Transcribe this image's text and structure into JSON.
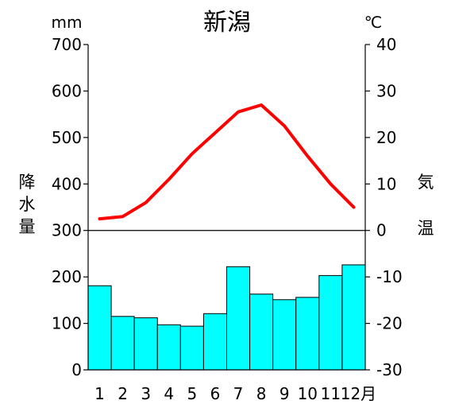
{
  "chart_data": {
    "type": "bar",
    "title": "新潟",
    "left_unit": "mm",
    "right_unit": "℃",
    "left_axis_label": [
      "降",
      "水",
      "量"
    ],
    "right_axis_label": [
      "気",
      "温"
    ],
    "categories": [
      "1",
      "2",
      "3",
      "4",
      "5",
      "6",
      "7",
      "8",
      "9",
      "10",
      "11",
      "12月"
    ],
    "precipitation": {
      "values": [
        181,
        115,
        112,
        97,
        94,
        121,
        222,
        163,
        151,
        156,
        203,
        226
      ],
      "ylim": [
        0,
        300
      ],
      "yticks": [
        0,
        100,
        200
      ]
    },
    "temperature": {
      "values": [
        2.5,
        3,
        6,
        11,
        16.5,
        21,
        25.5,
        27,
        22.5,
        16,
        10,
        5
      ],
      "ylim": [
        -30,
        40
      ],
      "yticks": [
        -30,
        -20,
        -10,
        0,
        10,
        20,
        30,
        40
      ]
    },
    "left_yticks_all": [
      0,
      100,
      200,
      300,
      400,
      500,
      600,
      700
    ],
    "left_ylim": [
      0,
      700
    ],
    "colors": {
      "bar_fill": "#00ffff",
      "bar_stroke": "#000000",
      "line": "#ff0000",
      "axis": "#000000"
    },
    "grid": false,
    "legend": "none"
  }
}
